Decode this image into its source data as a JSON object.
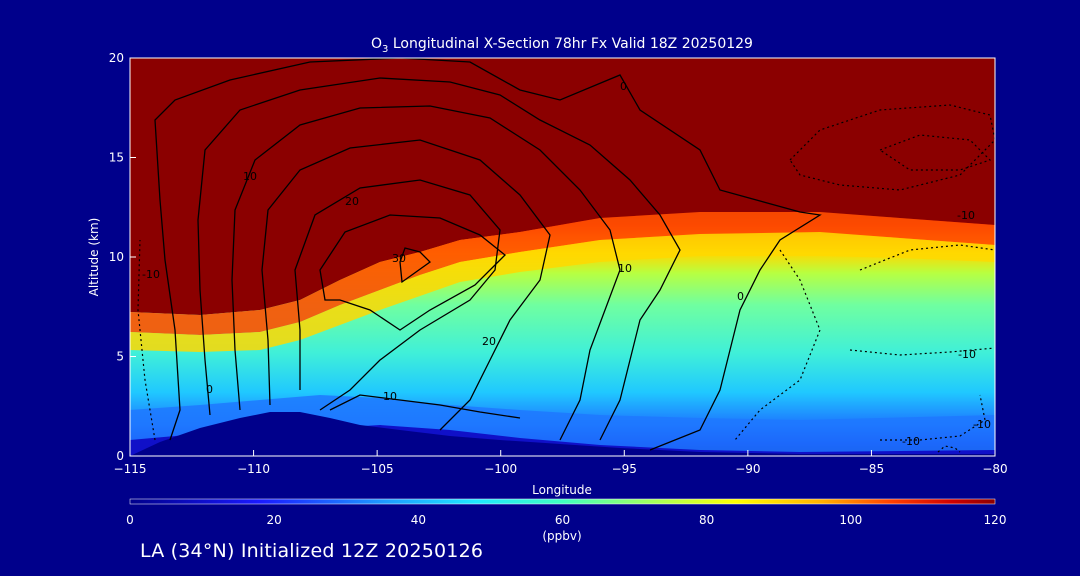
{
  "chart_data": {
    "type": "heatmap",
    "variable": "O3",
    "title_prefix": "O",
    "title_subscript": "3",
    "title_suffix": " Longitudinal X-Section 78hr  Fx Valid 18Z 20250129",
    "xlabel": "Longitude",
    "ylabel": "Altitude (km)",
    "xlim": [
      -115,
      -80
    ],
    "ylim": [
      0,
      20
    ],
    "x_ticks": [
      -115,
      -110,
      -105,
      -100,
      -95,
      -90,
      -85,
      -80
    ],
    "x_tick_labels": [
      "−115",
      "−110",
      "−105",
      "−100",
      "−95",
      "−90",
      "−85",
      "−80"
    ],
    "y_ticks": [
      0,
      5,
      10,
      15,
      20
    ],
    "y_tick_labels": [
      "0",
      "5",
      "10",
      "15",
      "20"
    ],
    "colorbar": {
      "range": [
        0,
        120
      ],
      "ticks": [
        0,
        20,
        40,
        60,
        80,
        100,
        120
      ],
      "tick_labels": [
        "0",
        "20",
        "40",
        "60",
        "80",
        "100",
        "120"
      ],
      "units": "(ppbv)"
    },
    "ozone_field_ppbv": {
      "description": "filled ozone mixing ratio; ~120+ above tropopause, ~40-60 mid troposphere, low near surface",
      "tropopause_km": [
        {
          "lon": -115,
          "alt": 7.5
        },
        {
          "lon": -110,
          "alt": 7.3
        },
        {
          "lon": -107,
          "alt": 8.0
        },
        {
          "lon": -104,
          "alt": 9.8
        },
        {
          "lon": -100,
          "alt": 10.8
        },
        {
          "lon": -95,
          "alt": 11.5
        },
        {
          "lon": -90,
          "alt": 12.0
        },
        {
          "lon": -85,
          "alt": 11.9
        },
        {
          "lon": -80,
          "alt": 11.6
        }
      ]
    },
    "contour_labels": [
      "0",
      "10",
      "20",
      "30",
      "10",
      "20",
      "10",
      "0",
      "0",
      "-10",
      "-10",
      "-10",
      "-10",
      "-10"
    ],
    "terrain_peak": {
      "lon": -108,
      "alt": 2.2
    }
  },
  "footer": {
    "text": "LA (34°N) Initialized 12Z 20250126"
  }
}
